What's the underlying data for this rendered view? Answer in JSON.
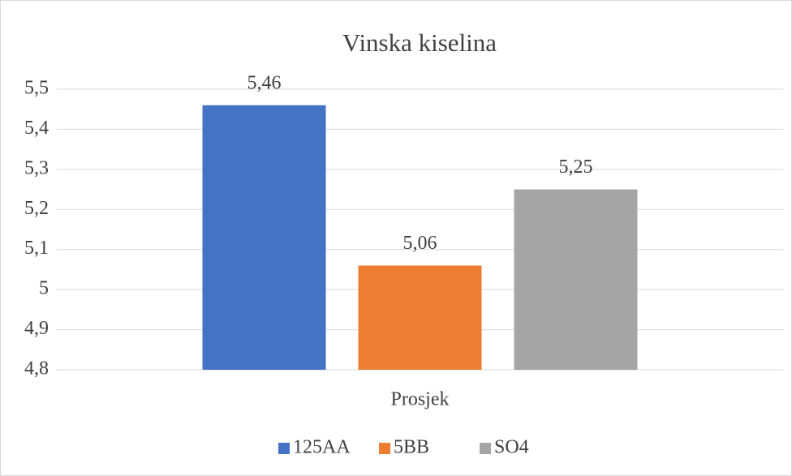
{
  "chart_data": {
    "type": "bar",
    "title": "Vinska kiselina",
    "categories": [
      "Prosjek"
    ],
    "series": [
      {
        "name": "125AA",
        "color": "#4472c4",
        "values": [
          5.46
        ],
        "value_labels": [
          "5,46"
        ]
      },
      {
        "name": "5BB",
        "color": "#ed7d31",
        "values": [
          5.06
        ],
        "value_labels": [
          "5,06"
        ]
      },
      {
        "name": "SO4",
        "color": "#a5a5a5",
        "values": [
          5.25
        ],
        "value_labels": [
          "5,25"
        ]
      }
    ],
    "ylim": [
      4.8,
      5.5
    ],
    "yticks": [
      {
        "value": 4.8,
        "label": "4,8"
      },
      {
        "value": 4.9,
        "label": "4,9"
      },
      5,
      {
        "value": 5.1,
        "label": "5,1"
      },
      {
        "value": 5.2,
        "label": "5,2"
      },
      {
        "value": 5.3,
        "label": "5,3"
      },
      {
        "value": 5.4,
        "label": "5,4"
      },
      {
        "value": 5.5,
        "label": "5,5"
      }
    ],
    "grid": true,
    "legend": "bottom"
  }
}
